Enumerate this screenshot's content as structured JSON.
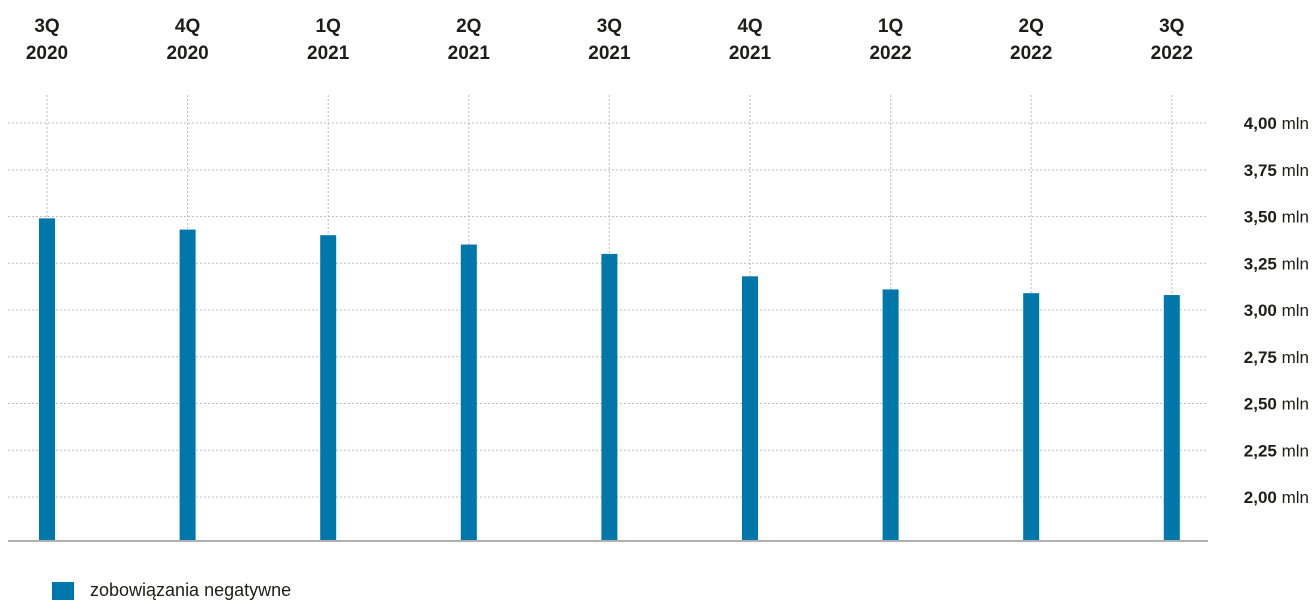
{
  "colors": {
    "bar": "#0077aa",
    "grid": "#bdbdbd",
    "axis": "#b0b0b0",
    "text": "#1d1d1b"
  },
  "chart_data": {
    "type": "bar",
    "categories": [
      [
        "3Q",
        "2020"
      ],
      [
        "4Q",
        "2020"
      ],
      [
        "1Q",
        "2021"
      ],
      [
        "2Q",
        "2021"
      ],
      [
        "3Q",
        "2021"
      ],
      [
        "4Q",
        "2021"
      ],
      [
        "1Q",
        "2022"
      ],
      [
        "2Q",
        "2022"
      ],
      [
        "3Q",
        "2022"
      ]
    ],
    "series": [
      {
        "name": "zobowiązania negatywne",
        "values": [
          3.49,
          3.43,
          3.4,
          3.35,
          3.3,
          3.18,
          3.11,
          3.09,
          3.08
        ]
      }
    ],
    "y_ticks": [
      {
        "value": 4.0,
        "label": "4,00",
        "unit": "mln"
      },
      {
        "value": 3.75,
        "label": "3,75",
        "unit": "mln"
      },
      {
        "value": 3.5,
        "label": "3,50",
        "unit": "mln"
      },
      {
        "value": 3.25,
        "label": "3,25",
        "unit": "mln"
      },
      {
        "value": 3.0,
        "label": "3,00",
        "unit": "mln"
      },
      {
        "value": 2.75,
        "label": "2,75",
        "unit": "mln"
      },
      {
        "value": 2.5,
        "label": "2,50",
        "unit": "mln"
      },
      {
        "value": 2.25,
        "label": "2,25",
        "unit": "mln"
      },
      {
        "value": 2.0,
        "label": "2,00",
        "unit": "mln"
      }
    ],
    "ylim": [
      2.0,
      4.0
    ],
    "grid": true,
    "legend_position": "bottom-left",
    "category_labels_position": "top",
    "y_axis_position": "right"
  }
}
